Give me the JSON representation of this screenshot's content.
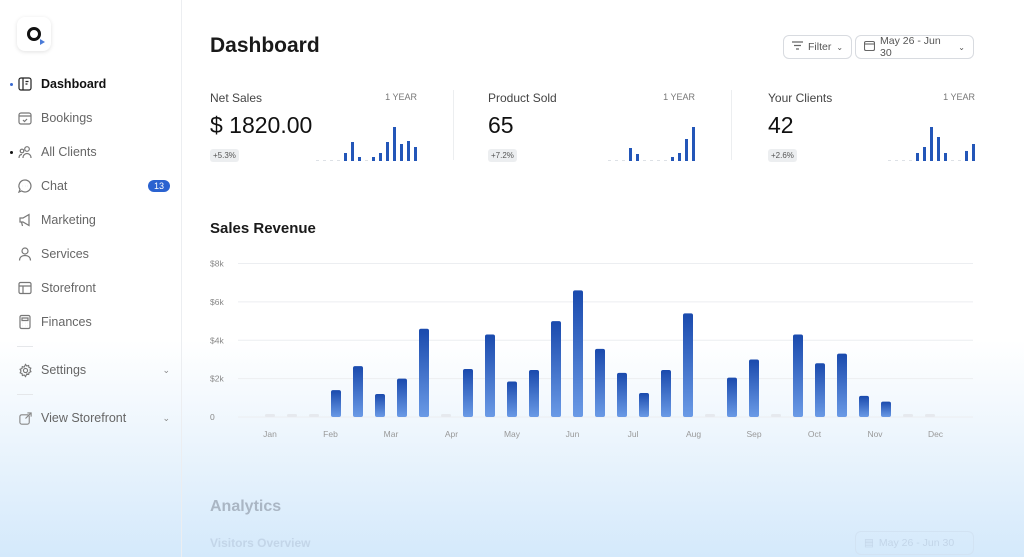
{
  "sidebar": {
    "items": [
      {
        "label": "Dashboard",
        "icon": "dashboard-icon",
        "active": true
      },
      {
        "label": "Bookings",
        "icon": "calendar-check-icon"
      },
      {
        "label": "All Clients",
        "icon": "users-icon",
        "dot": true
      },
      {
        "label": "Chat",
        "icon": "chat-icon",
        "badge": "13"
      },
      {
        "label": "Marketing",
        "icon": "megaphone-icon"
      },
      {
        "label": "Services",
        "icon": "user-icon"
      },
      {
        "label": "Storefront",
        "icon": "layout-icon"
      },
      {
        "label": "Finances",
        "icon": "calculator-icon"
      }
    ],
    "settings": "Settings",
    "view_storefront": "View Storefront"
  },
  "header": {
    "title": "Dashboard",
    "filter": "Filter",
    "date_range": "May 26 - Jun 30"
  },
  "stats": [
    {
      "label": "Net Sales",
      "period": "1 YEAR",
      "value": "$ 1820.00",
      "change": "+5.3%",
      "spark": [
        0,
        0,
        0,
        0,
        0.25,
        0.55,
        0.12,
        0,
        0.12,
        0.25,
        0.55,
        1.0,
        0.5,
        0.6,
        0.4
      ]
    },
    {
      "label": "Product Sold",
      "period": "1 YEAR",
      "value": "65",
      "change": "+7.2%",
      "spark": [
        0,
        0,
        0,
        0.37,
        0.2,
        0,
        0,
        0,
        0,
        0.12,
        0.25,
        0.66,
        1.0
      ]
    },
    {
      "label": "Your Clients",
      "period": "1 YEAR",
      "value": "42",
      "change": "+2.6%",
      "spark": [
        0,
        0,
        0,
        0,
        0.25,
        0.42,
        1.0,
        0.7,
        0.25,
        0,
        0,
        0.3,
        0.5
      ]
    }
  ],
  "revenue": {
    "title": "Sales Revenue"
  },
  "chart_data": {
    "type": "bar",
    "title": "Sales Revenue",
    "ylim": [
      0,
      8000
    ],
    "yticks": [
      "0",
      "$2k",
      "$4k",
      "$6k",
      "$8k"
    ],
    "ytick_values": [
      0,
      2000,
      4000,
      6000,
      8000
    ],
    "xticks": [
      "Jan",
      "Feb",
      "Mar",
      "Apr",
      "May",
      "Jun",
      "Jul",
      "Aug",
      "Sep",
      "Oct",
      "Nov",
      "Dec"
    ],
    "grid": true,
    "color_top": "#1a4aad",
    "color_bottom": "#6a9ae6",
    "values": [
      0,
      0,
      0,
      1400,
      2650,
      1200,
      2000,
      4600,
      0,
      2500,
      4300,
      1850,
      2450,
      5000,
      6600,
      3550,
      2300,
      1250,
      2450,
      5400,
      0,
      2050,
      3000,
      0,
      4300,
      2800,
      3300,
      1100,
      800,
      0,
      0
    ]
  },
  "analytics": {
    "title": "Analytics",
    "subtitle": "Visitors Overview",
    "date_range": "May 26 - Jun 30"
  }
}
